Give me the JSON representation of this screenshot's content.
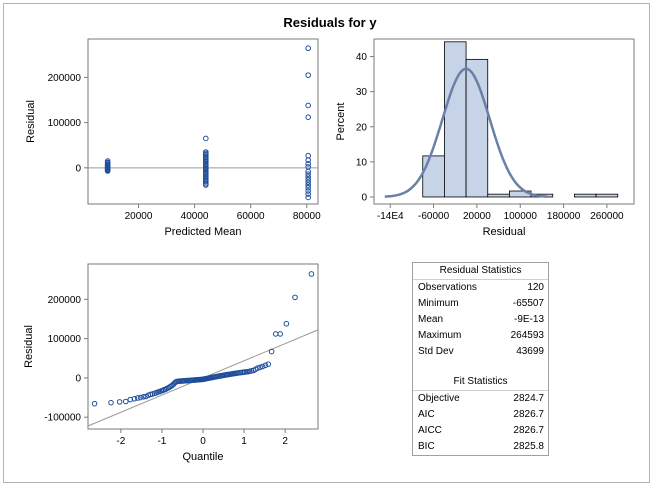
{
  "title": "Residuals for y",
  "chart_data": [
    {
      "type": "scatter",
      "xlabel": "Predicted Mean",
      "ylabel": "Residual",
      "xlim": [
        2000,
        84000
      ],
      "ylim": [
        -80000,
        285000
      ],
      "xticks": [
        20000,
        40000,
        60000,
        80000
      ],
      "yticks": [
        0,
        100000,
        200000
      ],
      "xtick_labels": [
        "20000",
        "40000",
        "60000",
        "80000"
      ],
      "ytick_labels": [
        "0",
        "100000",
        "200000"
      ],
      "reference_line_y": 0,
      "points": [
        [
          9000,
          15000
        ],
        [
          9000,
          11000
        ],
        [
          9000,
          8000
        ],
        [
          9000,
          5000
        ],
        [
          9000,
          3000
        ],
        [
          9000,
          1000
        ],
        [
          9000,
          -1000
        ],
        [
          9000,
          -3000
        ],
        [
          9000,
          -5000
        ],
        [
          9000,
          -7000
        ],
        [
          9000,
          6000
        ],
        [
          9000,
          -2000
        ],
        [
          9000,
          12000
        ],
        [
          9000,
          -6000
        ],
        [
          44000,
          65000
        ],
        [
          44000,
          35000
        ],
        [
          44000,
          32000
        ],
        [
          44000,
          29000
        ],
        [
          44000,
          26000
        ],
        [
          44000,
          23000
        ],
        [
          44000,
          20000
        ],
        [
          44000,
          17000
        ],
        [
          44000,
          14000
        ],
        [
          44000,
          11000
        ],
        [
          44000,
          8000
        ],
        [
          44000,
          5000
        ],
        [
          44000,
          2000
        ],
        [
          44000,
          -1000
        ],
        [
          44000,
          -4000
        ],
        [
          44000,
          -7000
        ],
        [
          44000,
          -10000
        ],
        [
          44000,
          -13000
        ],
        [
          44000,
          -16000
        ],
        [
          44000,
          -19000
        ],
        [
          44000,
          -22000
        ],
        [
          44000,
          -25000
        ],
        [
          44000,
          -28000
        ],
        [
          44000,
          -31000
        ],
        [
          44000,
          -35000
        ],
        [
          44000,
          -38000
        ],
        [
          80500,
          264593
        ],
        [
          80500,
          205000
        ],
        [
          80500,
          138000
        ],
        [
          80500,
          112000
        ],
        [
          80500,
          27000
        ],
        [
          80500,
          17000
        ],
        [
          80500,
          9000
        ],
        [
          80500,
          2000
        ],
        [
          80500,
          -8000
        ],
        [
          80500,
          -14000
        ],
        [
          80500,
          -20000
        ],
        [
          80500,
          -26000
        ],
        [
          80500,
          -32000
        ],
        [
          80500,
          -38000
        ],
        [
          80500,
          -44000
        ],
        [
          80500,
          -51000
        ],
        [
          80500,
          -58000
        ],
        [
          80500,
          -65507
        ]
      ]
    },
    {
      "type": "bar",
      "xlabel": "Residual",
      "ylabel": "Percent",
      "xlim": [
        -170000,
        310000
      ],
      "ylim": [
        -2,
        45
      ],
      "xticks": [
        -140000,
        -60000,
        20000,
        100000,
        180000,
        260000
      ],
      "xtick_labels": [
        "-14E4",
        "-60000",
        "20000",
        "100000",
        "180000",
        "260000"
      ],
      "yticks": [
        0,
        10,
        20,
        30,
        40
      ],
      "ytick_labels": [
        "0",
        "10",
        "20",
        "30",
        "40"
      ],
      "bin_width": 40000,
      "bins": [
        {
          "center": -60000,
          "percent": 11.7
        },
        {
          "center": -20000,
          "percent": 44.2
        },
        {
          "center": 20000,
          "percent": 39.2
        },
        {
          "center": 60000,
          "percent": 0.8
        },
        {
          "center": 100000,
          "percent": 1.7
        },
        {
          "center": 140000,
          "percent": 0.8
        },
        {
          "center": 180000,
          "percent": 0
        },
        {
          "center": 220000,
          "percent": 0.8
        },
        {
          "center": 260000,
          "percent": 0.8
        }
      ],
      "density_curve": {
        "type": "line",
        "mean": 0,
        "std": 43699,
        "x_range": [
          -150000,
          150000
        ]
      }
    },
    {
      "type": "scatter",
      "xlabel": "Quantile",
      "ylabel": "Residual",
      "xlim": [
        -2.8,
        2.8
      ],
      "ylim": [
        -130000,
        290000
      ],
      "xticks": [
        -2,
        -1,
        0,
        1,
        2
      ],
      "xtick_labels": [
        "-2",
        "-1",
        "0",
        "1",
        "2"
      ],
      "yticks": [
        -100000,
        0,
        100000,
        200000
      ],
      "ytick_labels": [
        "-100000",
        "0",
        "100000",
        "200000"
      ],
      "reference_line": {
        "intercept": 0,
        "slope": 43699
      },
      "n_points": 120,
      "points": [
        [
          -2.64,
          -65507
        ],
        [
          -2.24,
          -63000
        ],
        [
          -2.03,
          -61000
        ],
        [
          -1.88,
          -60000
        ],
        [
          -1.77,
          -55000
        ],
        [
          -1.67,
          -53000
        ],
        [
          -1.59,
          -51000
        ],
        [
          -1.52,
          -50000
        ],
        [
          -1.45,
          -48000
        ],
        [
          -1.39,
          -47000
        ],
        [
          -1.33,
          -44000
        ],
        [
          -1.28,
          -42000
        ],
        [
          -1.23,
          -41000
        ],
        [
          -1.18,
          -39000
        ],
        [
          -1.14,
          -38000
        ],
        [
          -1.1,
          -36000
        ],
        [
          -1.06,
          -35000
        ],
        [
          -1.02,
          -33000
        ],
        [
          -0.98,
          -32000
        ],
        [
          -0.95,
          -30000
        ],
        [
          -0.91,
          -29000
        ],
        [
          -0.88,
          -27000
        ],
        [
          -0.84,
          -25000
        ],
        [
          -0.81,
          -23000
        ],
        [
          -0.78,
          -21000
        ],
        [
          -0.75,
          -19000
        ],
        [
          -0.72,
          -16000
        ],
        [
          -0.69,
          -13000
        ],
        [
          -0.66,
          -10000
        ],
        [
          -0.63,
          -9000
        ],
        [
          -0.6,
          -8500
        ],
        [
          -0.57,
          -8200
        ],
        [
          -0.55,
          -8000
        ],
        [
          -0.52,
          -7800
        ],
        [
          -0.49,
          -7600
        ],
        [
          -0.47,
          -7400
        ],
        [
          -0.44,
          -7200
        ],
        [
          -0.41,
          -7000
        ],
        [
          -0.39,
          -6800
        ],
        [
          -0.36,
          -6600
        ],
        [
          -0.34,
          -6400
        ],
        [
          -0.31,
          -6200
        ],
        [
          -0.29,
          -6000
        ],
        [
          -0.26,
          -5800
        ],
        [
          -0.24,
          -5600
        ],
        [
          -0.21,
          -5400
        ],
        [
          -0.19,
          -5200
        ],
        [
          -0.17,
          -5000
        ],
        [
          -0.14,
          -4800
        ],
        [
          -0.12,
          -4600
        ],
        [
          -0.09,
          -4400
        ],
        [
          -0.07,
          -4200
        ],
        [
          -0.05,
          -4000
        ],
        [
          -0.02,
          -3800
        ],
        [
          0,
          -3500
        ],
        [
          0.02,
          -3000
        ],
        [
          0.05,
          -2500
        ],
        [
          0.07,
          -2000
        ],
        [
          0.09,
          -1500
        ],
        [
          0.12,
          -1000
        ],
        [
          0.14,
          -500
        ],
        [
          0.17,
          0
        ],
        [
          0.19,
          500
        ],
        [
          0.21,
          1000
        ],
        [
          0.24,
          1500
        ],
        [
          0.26,
          2000
        ],
        [
          0.29,
          2500
        ],
        [
          0.31,
          3000
        ],
        [
          0.34,
          3500
        ],
        [
          0.36,
          4000
        ],
        [
          0.39,
          4500
        ],
        [
          0.41,
          5000
        ],
        [
          0.44,
          5500
        ],
        [
          0.47,
          6000
        ],
        [
          0.49,
          6500
        ],
        [
          0.52,
          7000
        ],
        [
          0.55,
          7500
        ],
        [
          0.57,
          8000
        ],
        [
          0.6,
          8500
        ],
        [
          0.63,
          9000
        ],
        [
          0.66,
          9500
        ],
        [
          0.69,
          10000
        ],
        [
          0.72,
          10500
        ],
        [
          0.75,
          11000
        ],
        [
          0.78,
          11500
        ],
        [
          0.81,
          12000
        ],
        [
          0.84,
          12500
        ],
        [
          0.88,
          13000
        ],
        [
          0.91,
          13500
        ],
        [
          0.95,
          14000
        ],
        [
          0.98,
          14500
        ],
        [
          1.02,
          15000
        ],
        [
          1.06,
          15500
        ],
        [
          1.1,
          16000
        ],
        [
          1.14,
          17000
        ],
        [
          1.18,
          18000
        ],
        [
          1.23,
          19000
        ],
        [
          1.28,
          22000
        ],
        [
          1.33,
          25000
        ],
        [
          1.39,
          27000
        ],
        [
          1.45,
          29000
        ],
        [
          1.52,
          32000
        ],
        [
          1.59,
          35000
        ],
        [
          1.67,
          67000
        ],
        [
          1.77,
          112000
        ],
        [
          1.88,
          112000
        ],
        [
          2.03,
          138000
        ],
        [
          2.24,
          205000
        ],
        [
          2.64,
          264593
        ]
      ]
    }
  ],
  "residual_statistics": {
    "heading": "Residual Statistics",
    "rows": [
      {
        "label": "Observations",
        "value": "120"
      },
      {
        "label": "Minimum",
        "value": "-65507"
      },
      {
        "label": "Mean",
        "value": "-9E-13"
      },
      {
        "label": "Maximum",
        "value": "264593"
      },
      {
        "label": "Std Dev",
        "value": "43699"
      }
    ]
  },
  "fit_statistics": {
    "heading": "Fit Statistics",
    "rows": [
      {
        "label": "Objective",
        "value": "2824.7"
      },
      {
        "label": "AIC",
        "value": "2826.7"
      },
      {
        "label": "AICC",
        "value": "2826.7"
      },
      {
        "label": "BIC",
        "value": "2825.8"
      }
    ]
  },
  "colors": {
    "marker": "#1f4e9a",
    "bar_fill": "#c7d3e6",
    "curve": "#6a80a6",
    "refline": "#9a9a9a",
    "axis": "#7a7a7a"
  }
}
